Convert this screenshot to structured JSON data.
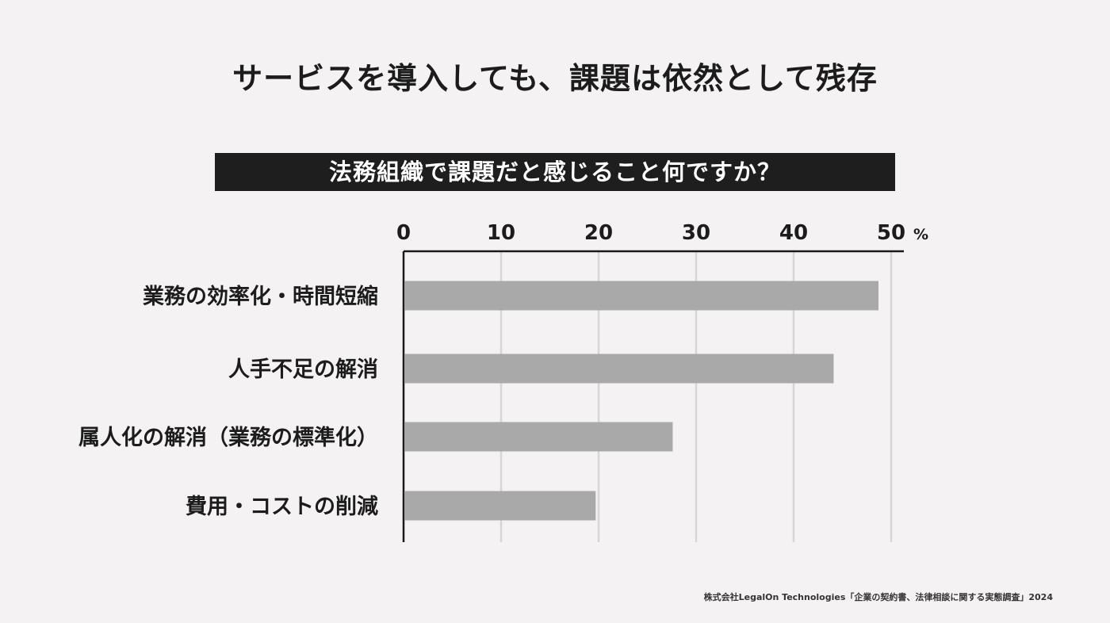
{
  "title": "サービスを導入しても、課題は依然として残存",
  "question": "法務組織で課題だと感じること何ですか？",
  "source": "株式会社LegalOn Technologies「企業の契約書、法律相談に関する実態調査」2024",
  "colors": {
    "bar": "#a9a9a9",
    "axis": "#1a1a1a",
    "grid": "#d6d6d6",
    "banner": "#1e1e1e"
  },
  "chart_data": {
    "type": "bar",
    "orientation": "horizontal",
    "categories": [
      "業務の効率化・時間短縮",
      "人手不足の解消",
      "属人化の解消（業務の標準化）",
      "費用・コストの削減"
    ],
    "values": [
      48.7,
      44.1,
      27.6,
      19.7
    ],
    "xlim": [
      0,
      50
    ],
    "ticks": [
      0,
      10,
      20,
      30,
      40,
      50
    ],
    "tick_labels": [
      "0",
      "10",
      "20",
      "30",
      "40",
      "50"
    ],
    "unit": "%",
    "grid": true
  }
}
